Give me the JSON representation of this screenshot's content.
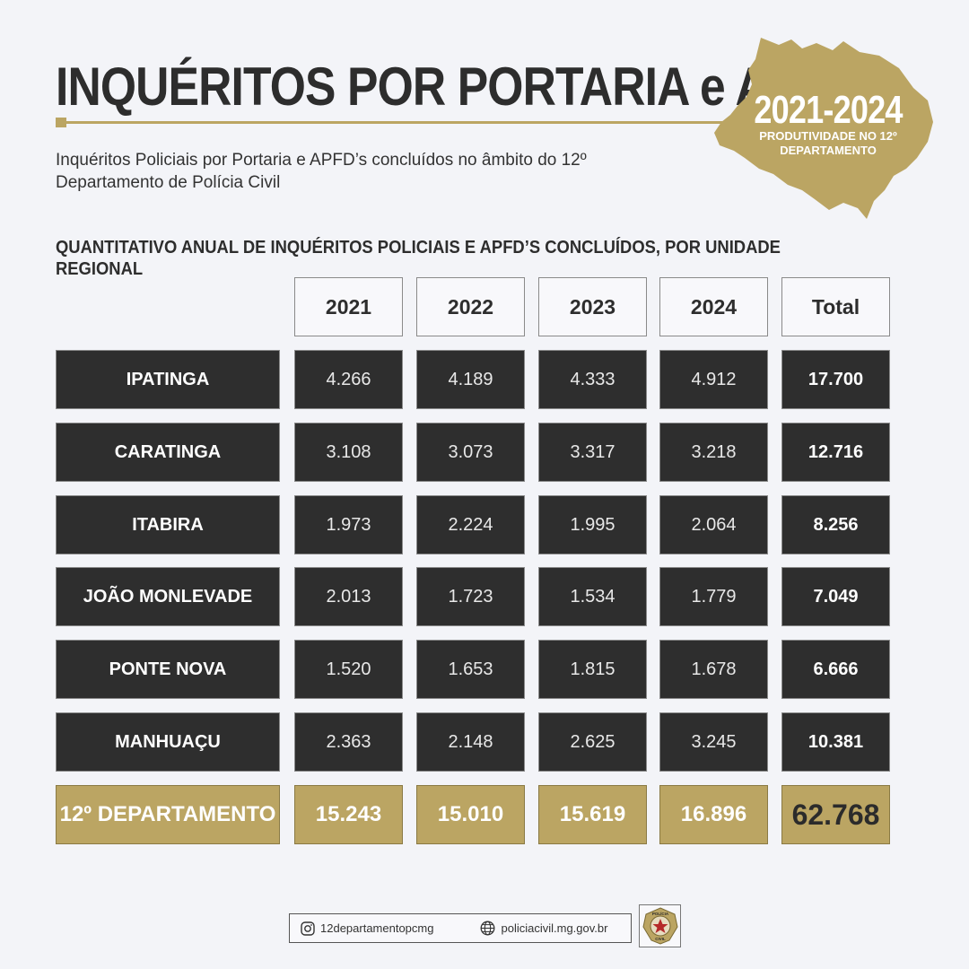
{
  "header": {
    "title": "INQUÉRITOS POR PORTARIA e APFD’s",
    "subtitle": "Inquéritos Policiais por Portaria e APFD’s concluídos no âmbito do 12º Departamento de Polícia Civil"
  },
  "badge": {
    "years": "2021-2024",
    "caption_line1": "PRODUTIVIDADE NO 12º",
    "caption_line2": "DEPARTAMENTO"
  },
  "section_heading": "QUANTITATIVO ANUAL DE INQUÉRITOS POLICIAIS E APFD’S CONCLUÍDOS, POR UNIDADE REGIONAL",
  "table": {
    "columns": [
      "2021",
      "2022",
      "2023",
      "2024",
      "Total"
    ],
    "rows": [
      {
        "label": "IPATINGA",
        "values": [
          "4.266",
          "4.189",
          "4.333",
          "4.912"
        ],
        "total": "17.700"
      },
      {
        "label": "CARATINGA",
        "values": [
          "3.108",
          "3.073",
          "3.317",
          "3.218"
        ],
        "total": "12.716"
      },
      {
        "label": "ITABIRA",
        "values": [
          "1.973",
          "2.224",
          "1.995",
          "2.064"
        ],
        "total": "8.256"
      },
      {
        "label": "JOÃO MONLEVADE",
        "values": [
          "2.013",
          "1.723",
          "1.534",
          "1.779"
        ],
        "total": "7.049"
      },
      {
        "label": "PONTE NOVA",
        "values": [
          "1.520",
          "1.653",
          "1.815",
          "1.678"
        ],
        "total": "6.666"
      },
      {
        "label": "MANHUAÇU",
        "values": [
          "2.363",
          "2.148",
          "2.625",
          "3.245"
        ],
        "total": "10.381"
      }
    ],
    "summary": {
      "label": "12º DEPARTAMENTO",
      "values": [
        "15.243",
        "15.010",
        "15.619",
        "16.896"
      ],
      "total": "62.768"
    }
  },
  "footer": {
    "instagram": "12departamentopcmg",
    "website": "policiacivil.mg.gov.br",
    "seal_top": "POLÍCIA",
    "seal_bottom": "CIVIL"
  },
  "colors": {
    "gold": "#bba563",
    "dark_cell": "#2e2e2e",
    "background": "#f3f4f8"
  },
  "icons": [
    "instagram-icon",
    "globe-icon",
    "police-seal-icon"
  ]
}
